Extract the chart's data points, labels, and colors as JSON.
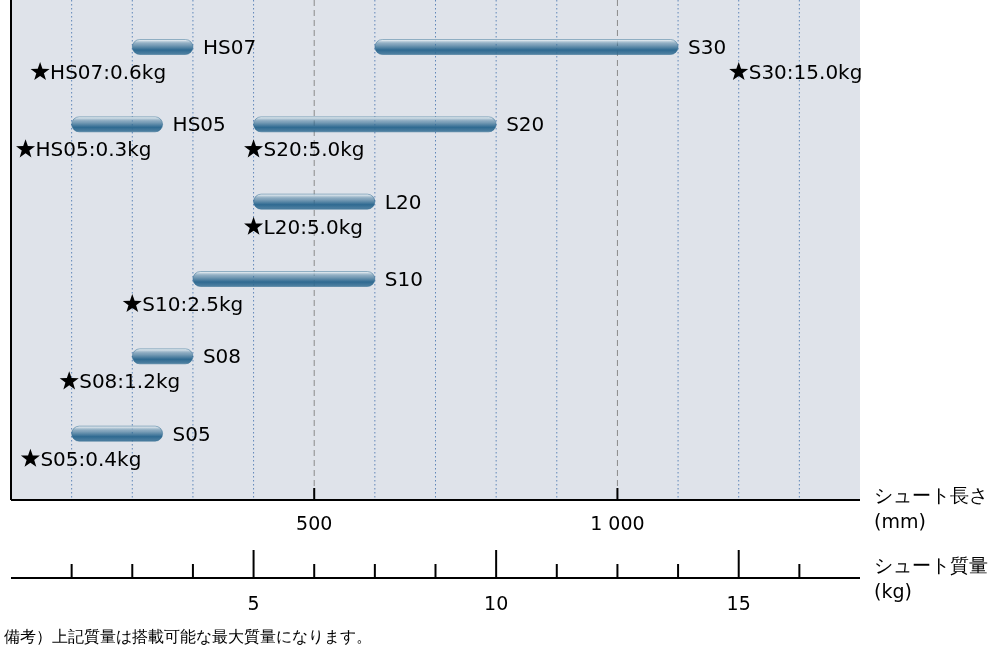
{
  "chart_data": {
    "type": "bar",
    "orientation": "horizontal",
    "categories": [
      null,
      null,
      null,
      null,
      null,
      null
    ],
    "series": [
      {
        "name": null,
        "color": "#2f6a91",
        "base": [
          200,
          100,
          400,
          300,
          200,
          100
        ],
        "values": [
          100,
          150,
          200,
          300,
          100,
          150
        ],
        "value_labels": [
          "HS07",
          "HS05",
          "L20",
          "S10",
          "S08",
          "S05"
        ]
      },
      {
        "name": null,
        "color": "#2f6a91",
        "base": [
          600,
          400,
          null,
          null,
          null,
          null
        ],
        "values": [
          500,
          400,
          null,
          null,
          null,
          null
        ],
        "value_labels": [
          "S30",
          "S20",
          null,
          null,
          null,
          null
        ]
      },
      {
        "type": "scatter",
        "axis": "x2",
        "marker": "star",
        "color": "#000000",
        "values": [
          0.6,
          0.3,
          5.0,
          2.5,
          1.2,
          0.4
        ],
        "value_labels": [
          "HS07:0.6kg",
          "HS05:0.3kg",
          "L20:5.0kg",
          "S10:2.5kg",
          "S08:1.2kg",
          "S05:0.4kg"
        ]
      },
      {
        "type": "scatter",
        "axis": "x2",
        "marker": "star",
        "color": "#000000",
        "values": [
          15.0,
          5.0,
          null,
          null,
          null,
          null
        ],
        "value_labels": [
          "S30:15.0kg",
          "S20:5.0kg",
          null,
          null,
          null,
          null
        ]
      }
    ],
    "xlim": [
      0,
      1400
    ],
    "xticks": [
      {
        "value": 100,
        "label": null
      },
      {
        "value": 200,
        "label": null
      },
      {
        "value": 300,
        "label": null
      },
      {
        "value": 400,
        "label": null
      },
      500,
      {
        "value": 600,
        "label": null
      },
      {
        "value": 700,
        "label": null
      },
      {
        "value": 800,
        "label": null
      },
      {
        "value": 900,
        "label": null
      },
      {
        "value": 1000,
        "label": "1 000"
      },
      {
        "value": 1100,
        "label": null
      },
      {
        "value": 1200,
        "label": null
      },
      {
        "value": 1300,
        "label": null
      }
    ],
    "x2lim": [
      0,
      17.5
    ],
    "x2ticks": [
      {
        "value": 1.25,
        "label": null
      },
      {
        "value": 2.5,
        "label": null
      },
      {
        "value": 3.75,
        "label": null
      },
      5,
      {
        "value": 6.25,
        "label": null
      },
      {
        "value": 7.5,
        "label": null
      },
      {
        "value": 8.75,
        "label": null
      },
      10,
      {
        "value": 11.25,
        "label": null
      },
      {
        "value": 12.5,
        "label": null
      },
      {
        "value": 13.75,
        "label": null
      },
      15,
      {
        "value": 16.25,
        "label": null
      }
    ],
    "xlabel": "シュート長さ\n(mm)",
    "x2label": "シュート質量\n(kg)",
    "grid": "x",
    "tick_labels": "x",
    "annotations": [
      "備考）上記質量は搭載可能な最大質量になります。"
    ]
  }
}
